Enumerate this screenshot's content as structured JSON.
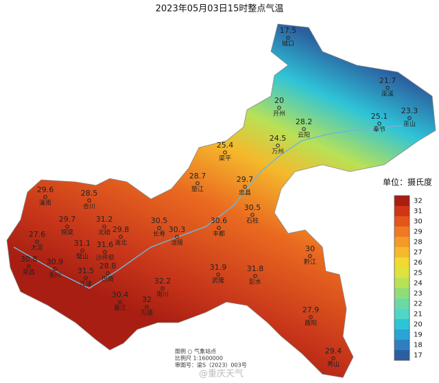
{
  "title": "2023年05月03日15时整点气温",
  "stations": [
    {
      "name": "城口",
      "value": 17.5
    },
    {
      "name": "巫溪",
      "value": 21.7
    },
    {
      "name": "开州",
      "value": 20
    },
    {
      "name": "巫山",
      "value": 23.3
    },
    {
      "name": "奉节",
      "value": 25.1
    },
    {
      "name": "云阳",
      "value": 28.2
    },
    {
      "name": "万州",
      "value": 24.5
    },
    {
      "name": "梁平",
      "value": 25.4
    },
    {
      "name": "垫江",
      "value": 28.7
    },
    {
      "name": "忠县",
      "value": 29.7
    },
    {
      "name": "潼南",
      "value": 29.6
    },
    {
      "name": "合川",
      "value": 28.5
    },
    {
      "name": "石柱",
      "value": 30.5
    },
    {
      "name": "铜梁",
      "value": 29.7
    },
    {
      "name": "北碚",
      "value": 31.2
    },
    {
      "name": "长寿",
      "value": 30.5
    },
    {
      "name": "丰都",
      "value": 30.6
    },
    {
      "name": "渝北",
      "value": 29.8
    },
    {
      "name": "大足",
      "value": 27.6
    },
    {
      "name": "涪陵",
      "value": 30.3
    },
    {
      "name": "璧山",
      "value": 31.1
    },
    {
      "name": "沙坪坝",
      "value": 31.6
    },
    {
      "name": "黔江",
      "value": 30
    },
    {
      "name": "荣昌",
      "value": 30.8
    },
    {
      "name": "永川",
      "value": 30.9
    },
    {
      "name": "巴南",
      "value": 28.8
    },
    {
      "name": "江津",
      "value": 31.5
    },
    {
      "name": "武隆",
      "value": 31.9
    },
    {
      "name": "彭水",
      "value": 31.8
    },
    {
      "name": "南川",
      "value": 32.2
    },
    {
      "name": "綦江",
      "value": 30.4
    },
    {
      "name": "万盛",
      "value": 32
    },
    {
      "name": "酉阳",
      "value": 27.9
    },
    {
      "name": "秀山",
      "value": 29.4
    }
  ],
  "legend": {
    "unit": "单位：摄氏度",
    "ticks": [
      17,
      18,
      19,
      20,
      21,
      22,
      23,
      24,
      25,
      26,
      27,
      28,
      29,
      30,
      31,
      32
    ],
    "colors": [
      "#2b5fa0",
      "#2f7fc0",
      "#2aa3d6",
      "#2ec4d8",
      "#4ed6c9",
      "#6bd9a6",
      "#8fdc7a",
      "#b9e156",
      "#dde33c",
      "#f2d830",
      "#f5b92c",
      "#f39a28",
      "#ef7a22",
      "#e4561c",
      "#cf3516",
      "#a81e12"
    ]
  },
  "footer": {
    "legend_note": "图例 ○ 气象站点",
    "scale": "比例尺 1:1600000",
    "approval": "审图号：渝S（2023）003号"
  },
  "watermark": "@重庆天气"
}
